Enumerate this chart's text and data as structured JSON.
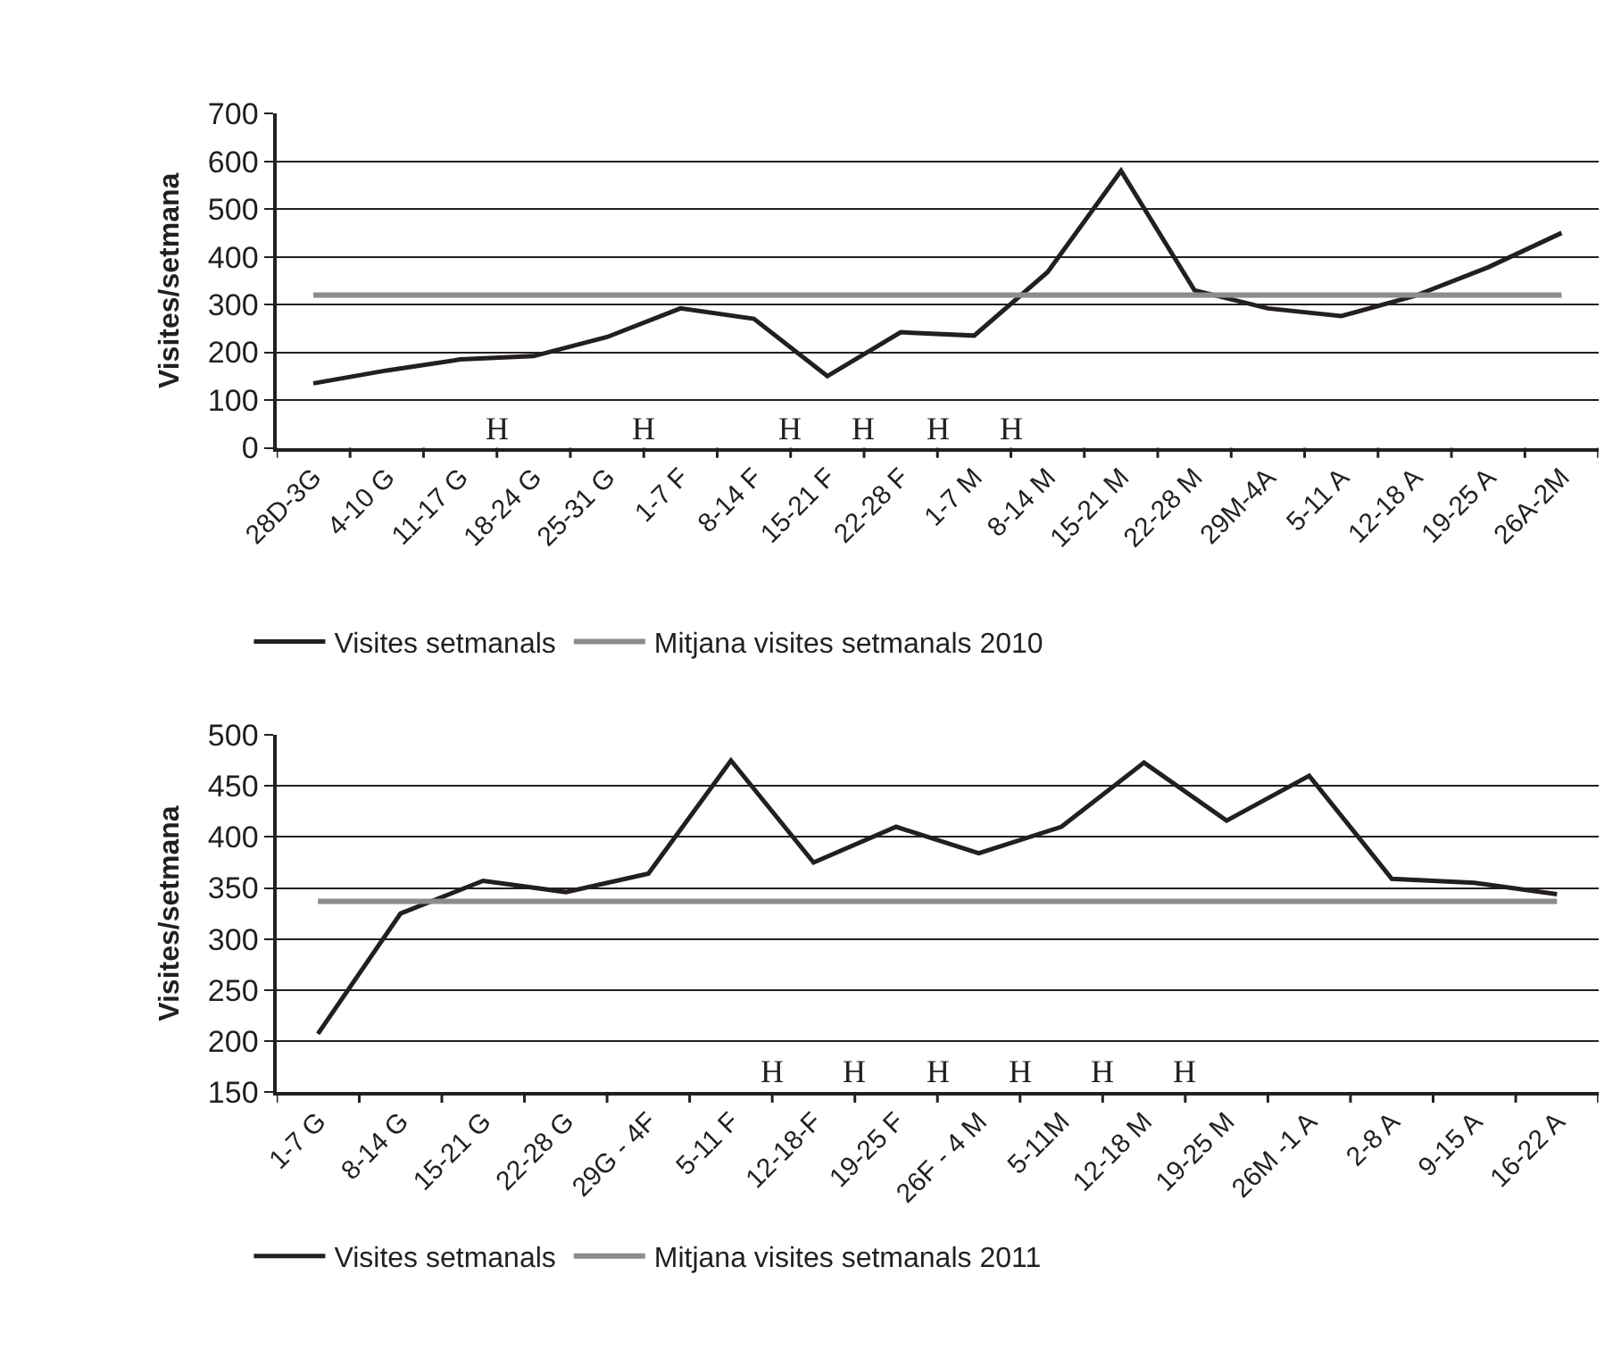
{
  "chart_data": [
    {
      "type": "line",
      "ylabel": "Visites/setmana",
      "categories": [
        "28D-3G",
        "4-10 G",
        "11-17 G",
        "18-24 G",
        "25-31 G",
        "1-7 F",
        "8-14 F",
        "15-21 F",
        "22-28 F",
        "1-7 M",
        "8-14 M",
        "15-21 M",
        "22-28 M",
        "29M-4A",
        "5-11 A",
        "12-18 A",
        "19-25 A",
        "26A-2M"
      ],
      "series": [
        {
          "name": "Visites setmanals",
          "color": "#231f20",
          "values": [
            135,
            162,
            185,
            192,
            232,
            292,
            270,
            150,
            242,
            235,
            368,
            580,
            330,
            292,
            276,
            318,
            378,
            450
          ]
        },
        {
          "name": "Mitjana visites setmanals 2010",
          "color": "#8c8c8c",
          "values": [
            320,
            320,
            320,
            320,
            320,
            320,
            320,
            320,
            320,
            320,
            320,
            320,
            320,
            320,
            320,
            320,
            320,
            320
          ]
        }
      ],
      "ylim": [
        0,
        700
      ],
      "yticks": [
        0,
        100,
        200,
        300,
        400,
        500,
        600,
        700
      ],
      "grid": "y",
      "legend": "bottom",
      "marker": "none",
      "line_style": "solid",
      "annotations": [
        "H",
        "H",
        "H",
        "H",
        "H",
        "H"
      ]
    },
    {
      "type": "line",
      "ylabel": "Visites/setmana",
      "categories": [
        "1-7 G",
        "8-14 G",
        "15-21 G",
        "22-28 G",
        "29G - 4F",
        "5-11 F",
        "12-18-F",
        "19-25 F",
        "26F - 4 M",
        "5-11M",
        "12-18 M",
        "19-25 M",
        "26M -1 A",
        "2-8 A",
        "9-15 A",
        "16-22 A"
      ],
      "series": [
        {
          "name": "Visites setmanals",
          "color": "#231f20",
          "values": [
            207,
            325,
            357,
            346,
            364,
            475,
            375,
            410,
            384,
            410,
            473,
            416,
            460,
            359,
            355,
            344
          ]
        },
        {
          "name": "Mitjana visites setmanals 2011",
          "color": "#8c8c8c",
          "values": [
            337,
            337,
            337,
            337,
            337,
            337,
            337,
            337,
            337,
            337,
            337,
            337,
            337,
            337,
            337,
            337
          ]
        }
      ],
      "ylim": [
        150,
        500
      ],
      "yticks": [
        150,
        200,
        250,
        300,
        350,
        400,
        450,
        500
      ],
      "grid": "y",
      "legend": "bottom",
      "marker": "none",
      "line_style": "solid",
      "annotations": [
        "H",
        "H",
        "H",
        "H",
        "H",
        "H"
      ]
    }
  ]
}
